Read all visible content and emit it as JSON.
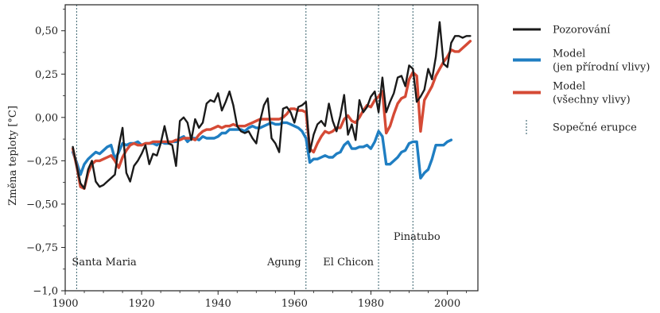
{
  "chart_data": {
    "type": "line",
    "title": "",
    "xlabel": "",
    "ylabel": "Změna teploty [°C]",
    "xlim": [
      1900,
      2008
    ],
    "ylim": [
      -1.0,
      0.65
    ],
    "xticks": [
      1900,
      1920,
      1940,
      1960,
      1980,
      2000
    ],
    "yticks": [
      -1.0,
      -0.75,
      -0.5,
      -0.25,
      0.0,
      0.25,
      0.5
    ],
    "ytick_labels": [
      "−1,0",
      "−0,75",
      "−0,50",
      "−0,25",
      "0,00",
      "0,25",
      "0,50"
    ],
    "xtick_labels": [
      "1900",
      "1920",
      "1940",
      "1960",
      "1980",
      "2000"
    ],
    "grid": false,
    "legend_position": "right",
    "series": [
      {
        "name": "Pozorování",
        "color": "#1a1a1a",
        "x": [
          1902,
          1903,
          1904,
          1905,
          1906,
          1907,
          1908,
          1909,
          1910,
          1911,
          1912,
          1913,
          1914,
          1915,
          1916,
          1917,
          1918,
          1919,
          1920,
          1921,
          1922,
          1923,
          1924,
          1925,
          1926,
          1927,
          1928,
          1929,
          1930,
          1931,
          1932,
          1933,
          1934,
          1935,
          1936,
          1937,
          1938,
          1939,
          1940,
          1941,
          1942,
          1943,
          1944,
          1945,
          1946,
          1947,
          1948,
          1949,
          1950,
          1951,
          1952,
          1953,
          1954,
          1955,
          1956,
          1957,
          1958,
          1959,
          1960,
          1961,
          1962,
          1963,
          1964,
          1965,
          1966,
          1967,
          1968,
          1969,
          1970,
          1971,
          1972,
          1973,
          1974,
          1975,
          1976,
          1977,
          1978,
          1979,
          1980,
          1981,
          1982,
          1983,
          1984,
          1985,
          1986,
          1987,
          1988,
          1989,
          1990,
          1991,
          1992,
          1993,
          1994,
          1995,
          1996,
          1997,
          1998,
          1999,
          2000,
          2001,
          2002,
          2003,
          2004,
          2005,
          2006
        ],
        "values": [
          -0.17,
          -0.28,
          -0.38,
          -0.41,
          -0.3,
          -0.25,
          -0.37,
          -0.4,
          -0.39,
          -0.37,
          -0.35,
          -0.33,
          -0.17,
          -0.06,
          -0.32,
          -0.37,
          -0.28,
          -0.25,
          -0.21,
          -0.16,
          -0.27,
          -0.21,
          -0.22,
          -0.15,
          -0.05,
          -0.15,
          -0.16,
          -0.28,
          -0.02,
          0.0,
          -0.03,
          -0.13,
          -0.01,
          -0.06,
          -0.03,
          0.08,
          0.1,
          0.09,
          0.14,
          0.04,
          0.09,
          0.15,
          0.07,
          -0.05,
          -0.08,
          -0.09,
          -0.08,
          -0.12,
          -0.15,
          -0.02,
          0.07,
          0.11,
          -0.12,
          -0.15,
          -0.2,
          0.05,
          0.06,
          0.03,
          -0.03,
          0.06,
          0.07,
          0.09,
          -0.2,
          -0.1,
          -0.04,
          -0.02,
          -0.05,
          0.08,
          -0.02,
          -0.08,
          0.01,
          0.13,
          -0.1,
          -0.04,
          -0.13,
          0.1,
          0.03,
          0.06,
          0.12,
          0.15,
          0.03,
          0.23,
          0.03,
          0.09,
          0.14,
          0.23,
          0.24,
          0.18,
          0.3,
          0.28,
          0.09,
          0.12,
          0.16,
          0.28,
          0.22,
          0.35,
          0.55,
          0.31,
          0.29,
          0.43,
          0.47,
          0.47,
          0.46,
          0.47,
          0.47
        ]
      },
      {
        "name": "Model (jen přírodní vlivy)",
        "color": "#1f7ec2",
        "x": [
          1902,
          1903,
          1904,
          1905,
          1906,
          1907,
          1908,
          1909,
          1910,
          1911,
          1912,
          1913,
          1914,
          1915,
          1916,
          1917,
          1918,
          1919,
          1920,
          1921,
          1922,
          1923,
          1924,
          1925,
          1926,
          1927,
          1928,
          1929,
          1930,
          1931,
          1932,
          1933,
          1934,
          1935,
          1936,
          1937,
          1938,
          1939,
          1940,
          1941,
          1942,
          1943,
          1944,
          1945,
          1946,
          1947,
          1948,
          1949,
          1950,
          1951,
          1952,
          1953,
          1954,
          1955,
          1956,
          1957,
          1958,
          1959,
          1960,
          1961,
          1962,
          1963,
          1964,
          1965,
          1966,
          1967,
          1968,
          1969,
          1970,
          1971,
          1972,
          1973,
          1974,
          1975,
          1976,
          1977,
          1978,
          1979,
          1980,
          1981,
          1982,
          1983,
          1984,
          1985,
          1986,
          1987,
          1988,
          1989,
          1990,
          1991,
          1992,
          1993,
          1994,
          1995,
          1996,
          1997,
          1998,
          1999,
          2000,
          2001
        ],
        "values": [
          -0.2,
          -0.26,
          -0.33,
          -0.27,
          -0.24,
          -0.22,
          -0.2,
          -0.21,
          -0.19,
          -0.17,
          -0.16,
          -0.24,
          -0.2,
          -0.15,
          -0.16,
          -0.15,
          -0.15,
          -0.14,
          -0.16,
          -0.15,
          -0.15,
          -0.15,
          -0.16,
          -0.14,
          -0.15,
          -0.15,
          -0.14,
          -0.14,
          -0.12,
          -0.11,
          -0.14,
          -0.12,
          -0.12,
          -0.13,
          -0.11,
          -0.12,
          -0.12,
          -0.12,
          -0.11,
          -0.09,
          -0.09,
          -0.07,
          -0.07,
          -0.07,
          -0.07,
          -0.08,
          -0.06,
          -0.05,
          -0.06,
          -0.06,
          -0.05,
          -0.04,
          -0.03,
          -0.04,
          -0.04,
          -0.03,
          -0.03,
          -0.04,
          -0.05,
          -0.06,
          -0.08,
          -0.12,
          -0.26,
          -0.24,
          -0.24,
          -0.23,
          -0.22,
          -0.23,
          -0.23,
          -0.21,
          -0.2,
          -0.16,
          -0.14,
          -0.18,
          -0.18,
          -0.17,
          -0.17,
          -0.16,
          -0.18,
          -0.14,
          -0.08,
          -0.11,
          -0.27,
          -0.27,
          -0.25,
          -0.23,
          -0.2,
          -0.19,
          -0.15,
          -0.14,
          -0.14,
          -0.35,
          -0.32,
          -0.3,
          -0.24,
          -0.16,
          -0.16,
          -0.16,
          -0.14,
          -0.13
        ]
      },
      {
        "name": "Model (všechny vlivy)",
        "color": "#d54a35",
        "x": [
          1902,
          1903,
          1904,
          1905,
          1906,
          1907,
          1908,
          1909,
          1910,
          1911,
          1912,
          1913,
          1914,
          1915,
          1916,
          1917,
          1918,
          1919,
          1920,
          1921,
          1922,
          1923,
          1924,
          1925,
          1926,
          1927,
          1928,
          1929,
          1930,
          1931,
          1932,
          1933,
          1934,
          1935,
          1936,
          1937,
          1938,
          1939,
          1940,
          1941,
          1942,
          1943,
          1944,
          1945,
          1946,
          1947,
          1948,
          1949,
          1950,
          1951,
          1952,
          1953,
          1954,
          1955,
          1956,
          1957,
          1958,
          1959,
          1960,
          1961,
          1962,
          1963,
          1964,
          1965,
          1966,
          1967,
          1968,
          1969,
          1970,
          1971,
          1972,
          1973,
          1974,
          1975,
          1976,
          1977,
          1978,
          1979,
          1980,
          1981,
          1982,
          1983,
          1984,
          1985,
          1986,
          1987,
          1988,
          1989,
          1990,
          1991,
          1992,
          1993,
          1994,
          1995,
          1996,
          1997,
          1998,
          1999,
          2000,
          2001,
          2002,
          2003,
          2004,
          2005,
          2006
        ],
        "values": [
          -0.18,
          -0.28,
          -0.4,
          -0.41,
          -0.32,
          -0.27,
          -0.25,
          -0.25,
          -0.24,
          -0.23,
          -0.22,
          -0.25,
          -0.29,
          -0.23,
          -0.19,
          -0.16,
          -0.15,
          -0.16,
          -0.16,
          -0.15,
          -0.15,
          -0.14,
          -0.14,
          -0.14,
          -0.14,
          -0.14,
          -0.14,
          -0.13,
          -0.13,
          -0.12,
          -0.12,
          -0.12,
          -0.13,
          -0.1,
          -0.08,
          -0.07,
          -0.07,
          -0.06,
          -0.05,
          -0.06,
          -0.05,
          -0.05,
          -0.04,
          -0.05,
          -0.05,
          -0.05,
          -0.04,
          -0.03,
          -0.02,
          -0.01,
          -0.01,
          -0.01,
          -0.01,
          -0.01,
          -0.01,
          0.0,
          0.02,
          0.05,
          0.05,
          0.04,
          0.04,
          0.03,
          -0.18,
          -0.2,
          -0.15,
          -0.11,
          -0.08,
          -0.09,
          -0.08,
          -0.06,
          -0.06,
          -0.01,
          0.01,
          -0.02,
          -0.03,
          0.0,
          0.04,
          0.07,
          0.06,
          0.1,
          0.12,
          0.15,
          -0.09,
          -0.05,
          0.02,
          0.08,
          0.11,
          0.12,
          0.22,
          0.26,
          0.24,
          -0.08,
          0.1,
          0.14,
          0.18,
          0.24,
          0.28,
          0.32,
          0.35,
          0.39,
          0.38,
          0.38,
          0.4,
          0.42,
          0.44
        ]
      }
    ],
    "volcanic_eruptions": [
      {
        "name": "Santa Maria",
        "year": 1903
      },
      {
        "name": "Agung",
        "year": 1963
      },
      {
        "name": "El Chicon",
        "year": 1982
      },
      {
        "name": "Pinatubo",
        "year": 1991
      }
    ],
    "legend": [
      {
        "label_lines": [
          "Pozorování"
        ],
        "color": "#1a1a1a",
        "style": "solid"
      },
      {
        "label_lines": [
          "Model",
          "(jen přírodní vlivy)"
        ],
        "color": "#1f7ec2",
        "style": "solid"
      },
      {
        "label_lines": [
          "Model",
          "(všechny vlivy)"
        ],
        "color": "#d54a35",
        "style": "solid"
      },
      {
        "label_lines": [
          "Sopečné erupce"
        ],
        "color": "#4a6f7a",
        "style": "dotted"
      }
    ],
    "colors": {
      "axis": "#222222",
      "volcano_line": "#4a6f7a"
    }
  }
}
